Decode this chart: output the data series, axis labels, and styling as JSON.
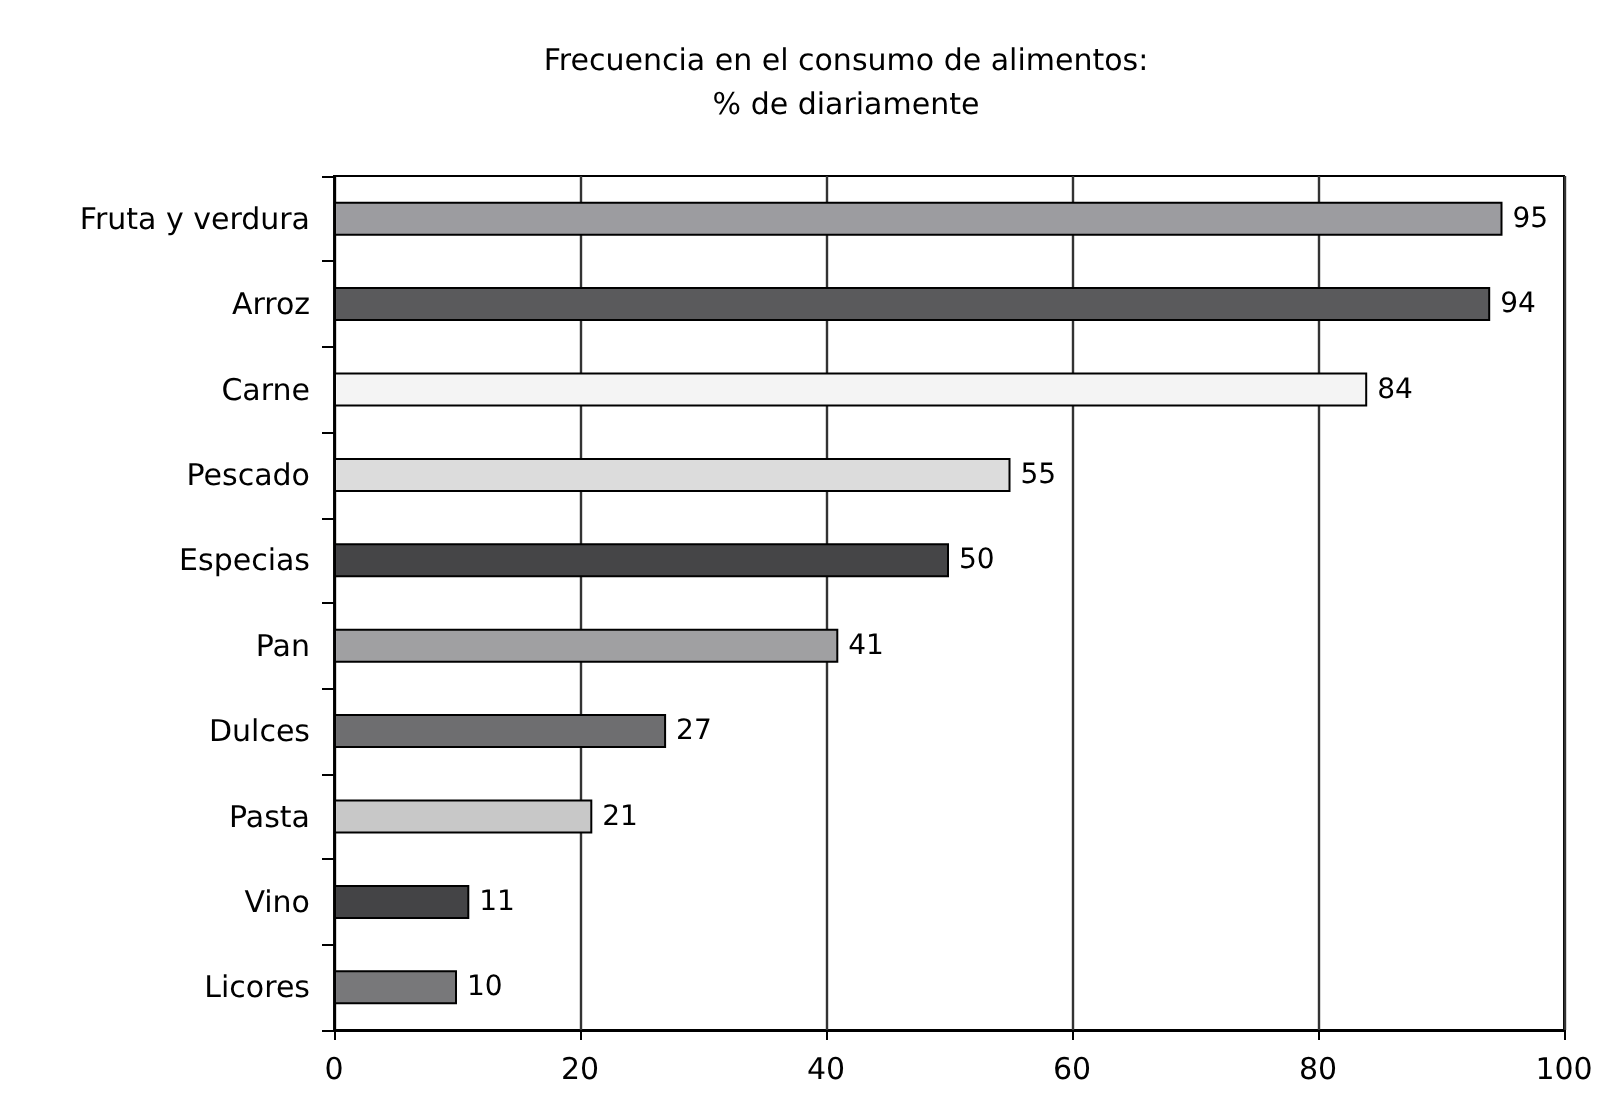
{
  "chart_data": {
    "type": "bar",
    "orientation": "horizontal",
    "title": "Frecuencia en el consumo de alimentos:\n% de diariamente",
    "categories": [
      "Fruta y verdura",
      "Arroz",
      "Carne",
      "Pescado",
      "Especias",
      "Pan",
      "Dulces",
      "Pasta",
      "Vino",
      "Licores"
    ],
    "values": [
      95,
      94,
      84,
      55,
      50,
      41,
      27,
      21,
      11,
      10
    ],
    "colors": [
      "#9c9ca0",
      "#5a5a5c",
      "#f4f4f4",
      "#dcdcdc",
      "#454547",
      "#a0a0a2",
      "#6e6e70",
      "#c8c8c8",
      "#444446",
      "#78787a"
    ],
    "xlim": [
      0,
      100
    ],
    "xticks": [
      0,
      20,
      40,
      60,
      80,
      100
    ],
    "grid": "x",
    "data_labels": true
  }
}
